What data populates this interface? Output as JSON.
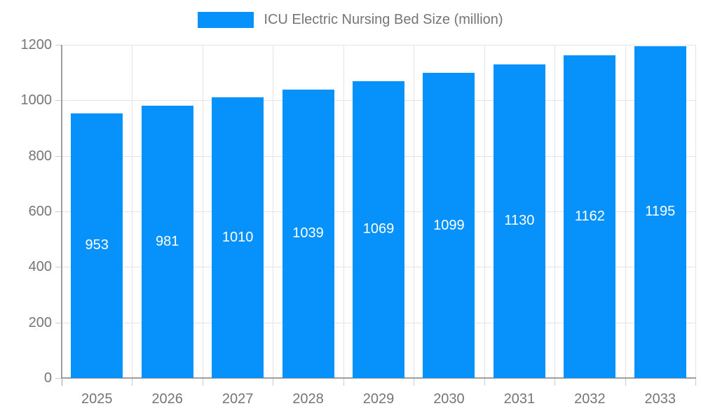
{
  "legend": {
    "label": "ICU Electric Nursing Bed Size (million)"
  },
  "chart_data": {
    "type": "bar",
    "title": "ICU Electric Nursing Bed Size (million)",
    "categories": [
      "2025",
      "2026",
      "2027",
      "2028",
      "2029",
      "2030",
      "2031",
      "2032",
      "2033"
    ],
    "values": [
      953,
      981,
      1010,
      1039,
      1069,
      1099,
      1130,
      1162,
      1195
    ],
    "value_labels": [
      "953",
      "981",
      "1010",
      "1039",
      "1069",
      "1099",
      "1130",
      "1162",
      "1195"
    ],
    "xlabel": "",
    "ylabel": "",
    "ylim": [
      0,
      1200
    ],
    "yticks": [
      0,
      200,
      400,
      600,
      800,
      1000,
      1200
    ],
    "grid": true,
    "legend_position": "top-center",
    "colors": {
      "bar": "#0691fb",
      "legend_text": "#757575",
      "axis_text": "#757575",
      "gridline": "#e3e3e3",
      "tick": "#cccccc",
      "axis_line": "#9e9e9e",
      "value_label": "#ffffff",
      "background": "#ffffff"
    }
  }
}
